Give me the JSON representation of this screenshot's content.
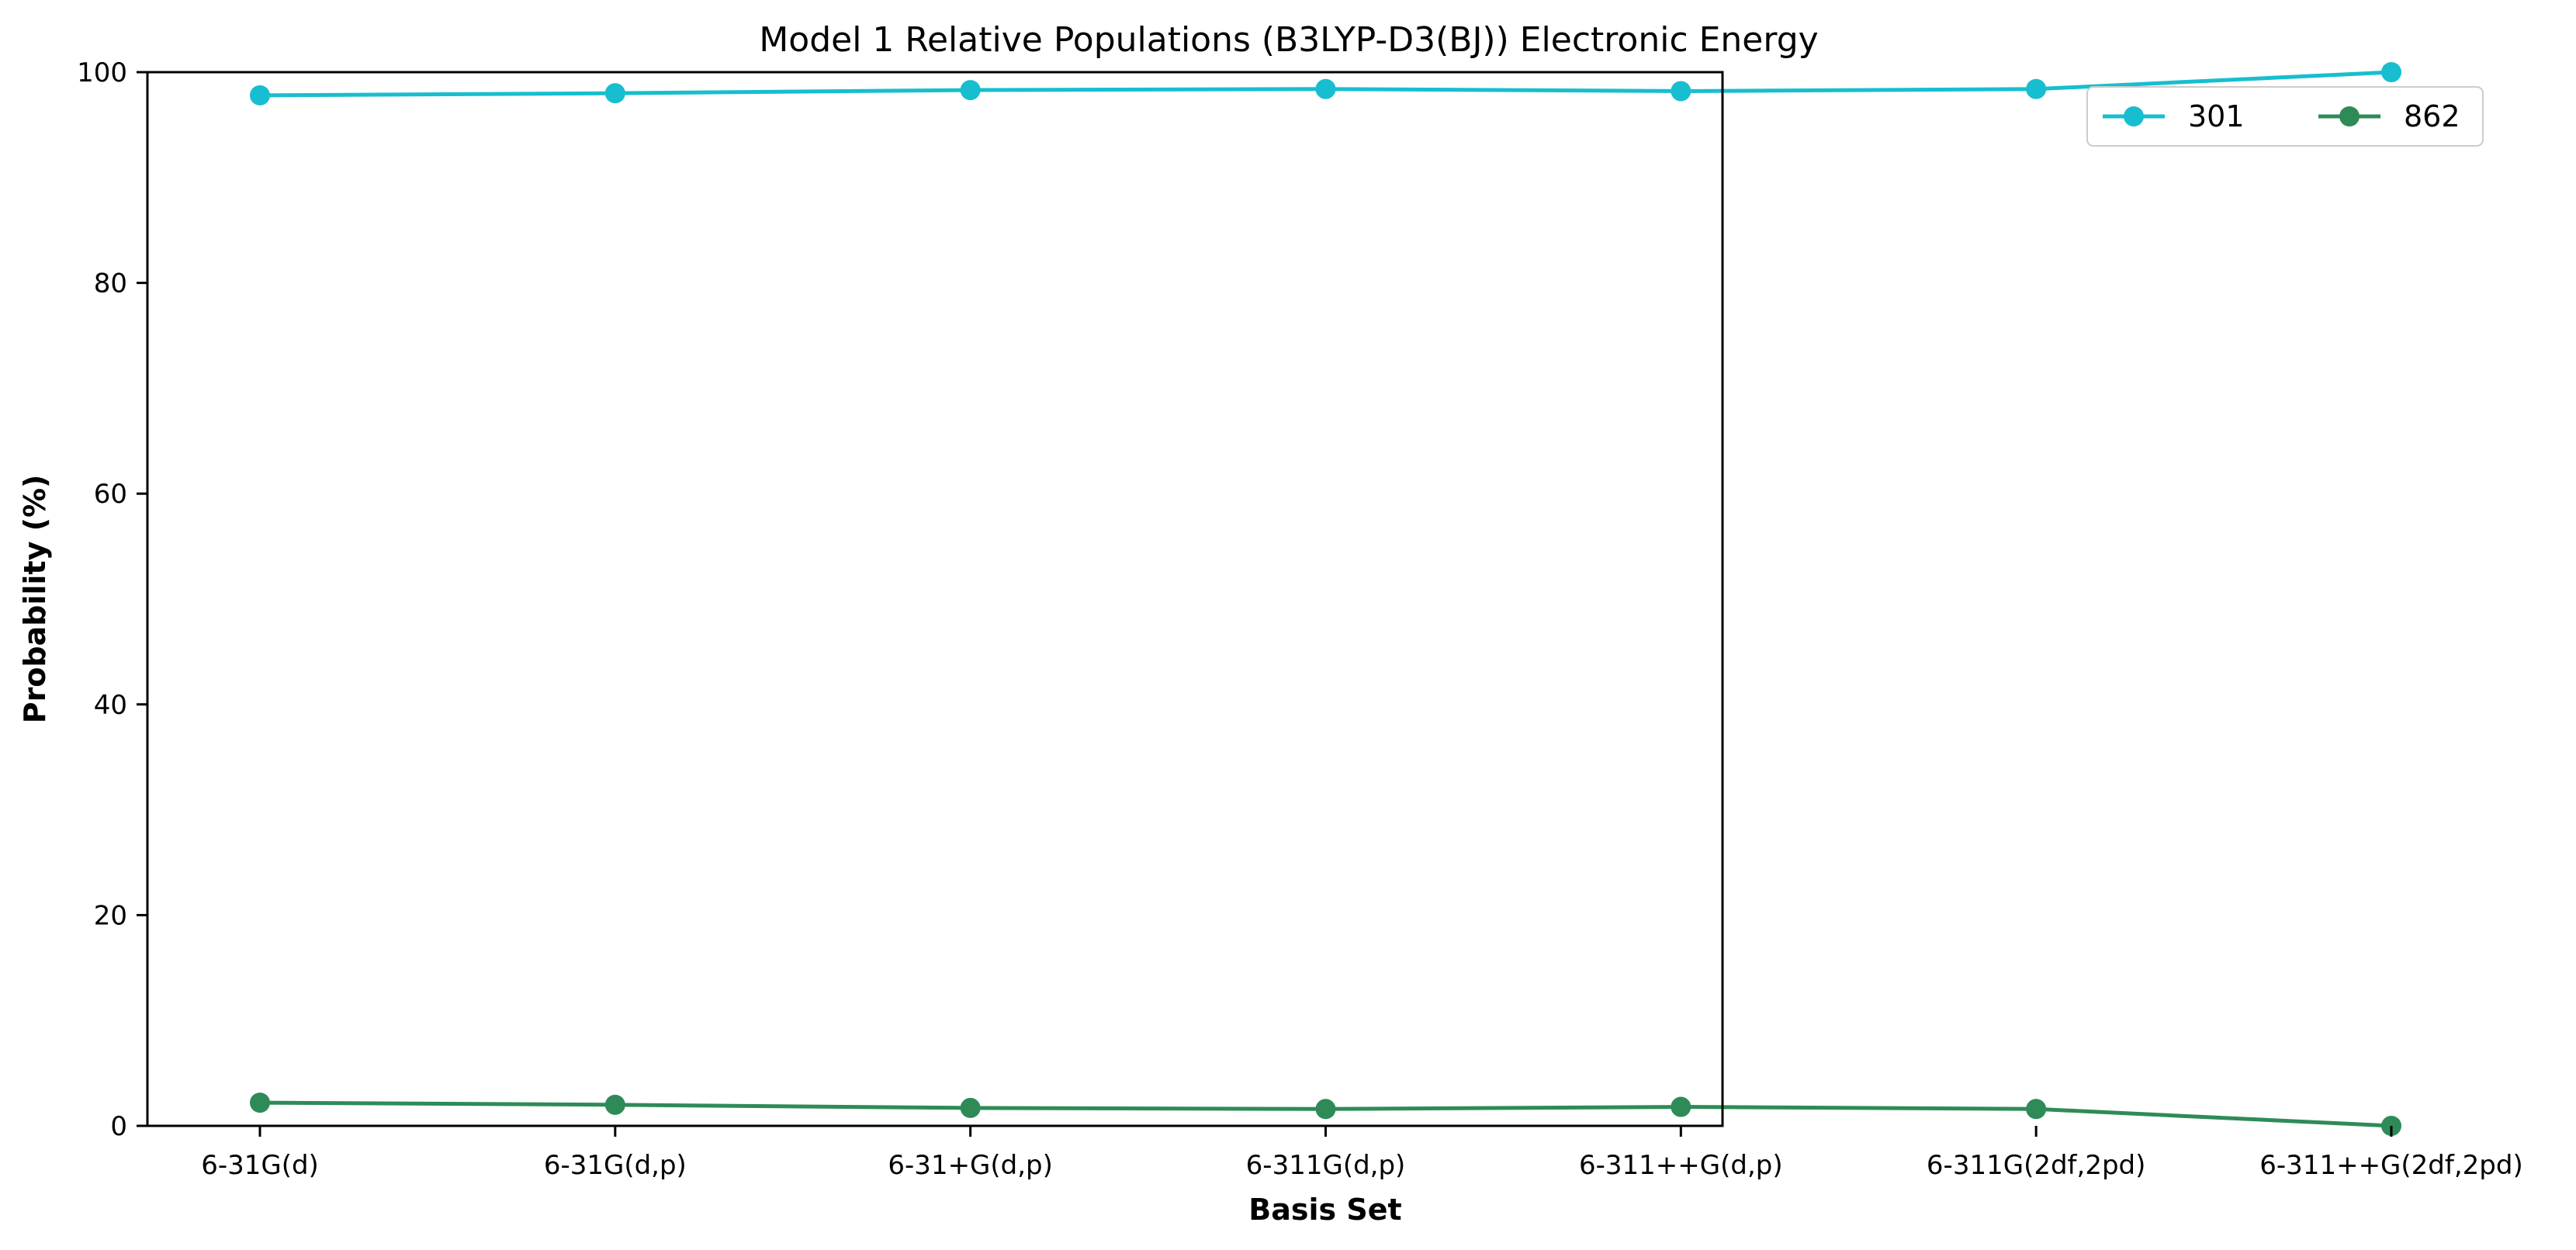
{
  "chart_data": {
    "type": "line",
    "title": "Model 1 Relative Populations (B3LYP-D3(BJ)) Electronic Energy",
    "xlabel": "Basis Set",
    "ylabel": "Probability (%)",
    "ylim": [
      0,
      100
    ],
    "yticks": [
      "0",
      "20",
      "40",
      "60",
      "80",
      "100"
    ],
    "categories": [
      "6-31G(d)",
      "6-31G(d,p)",
      "6-31+G(d,p)",
      "6-311G(d,p)",
      "6-311++G(d,p)",
      "6-311G(2df,2pd)",
      "6-311++G(2df,2pd)"
    ],
    "series": [
      {
        "name": "301",
        "color": "#17becf",
        "values": [
          97.8,
          98.0,
          98.3,
          98.4,
          98.2,
          98.4,
          100.0
        ]
      },
      {
        "name": "862",
        "color": "#2e8b57",
        "values": [
          2.2,
          2.0,
          1.7,
          1.6,
          1.8,
          1.6,
          0.0
        ]
      }
    ],
    "grid": false,
    "legend": "top-right"
  }
}
